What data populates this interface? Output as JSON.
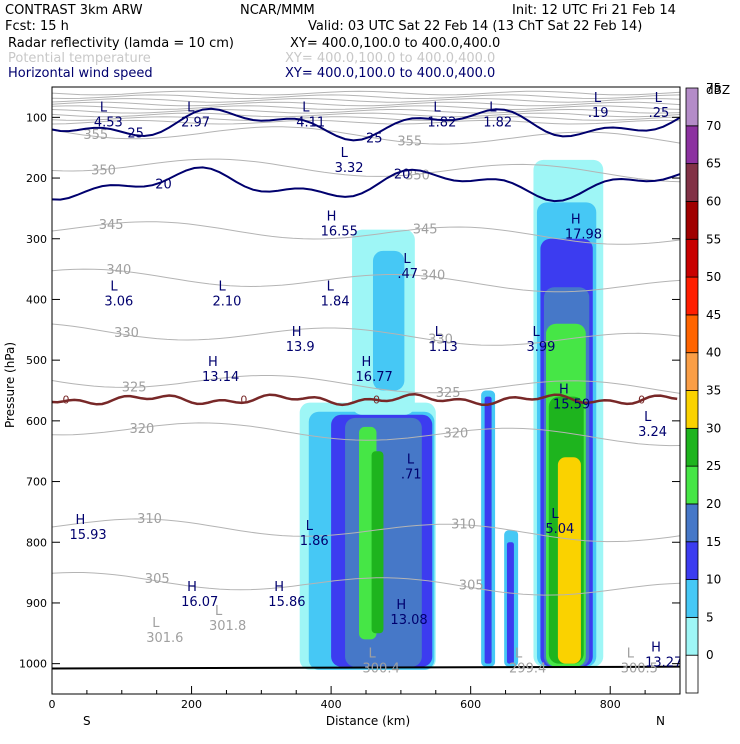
{
  "header": {
    "model": "CONTRAST   3km ARW",
    "org": "NCAR/MMM",
    "init": "Init: 12 UTC Fri 21 Feb 14",
    "fcst": "Fcst:    15 h",
    "valid": "Valid: 03 UTC Sat 22 Feb 14 (13 ChT Sat 22 Feb 14)"
  },
  "fields": [
    {
      "name": "Radar reflectivity (lamda = 10 cm)",
      "xy": "XY= 400.0,100.0 to 400.0,400.0",
      "color": "#000000"
    },
    {
      "name": "Potential temperature",
      "xy": "XY= 400.0,100.0 to 400.0,400.0",
      "color": "#c8c8c8"
    },
    {
      "name": "Horizontal wind speed",
      "xy": "XY= 400.0,100.0 to 400.0,400.0",
      "color": "#00006e"
    }
  ],
  "chart_data": {
    "type": "heatmap",
    "title": "",
    "xlabel": "Distance (km)",
    "ylabel": "Pressure (hPa)",
    "xlim": [
      0,
      900
    ],
    "ylim": [
      1050,
      50
    ],
    "x_ticks": [
      "0",
      "200",
      "400",
      "600",
      "800"
    ],
    "x_tick_values": [
      0,
      200,
      400,
      600,
      800
    ],
    "y_ticks": [
      "100",
      "200",
      "300",
      "400",
      "500",
      "600",
      "700",
      "800",
      "900",
      "1000"
    ],
    "y_tick_values": [
      100,
      200,
      300,
      400,
      500,
      600,
      700,
      800,
      900,
      1000
    ],
    "x_end_labels": {
      "left": "S",
      "right": "N"
    },
    "colorbar": {
      "unit": "dBZ",
      "levels": [
        0,
        5,
        10,
        15,
        20,
        25,
        30,
        35,
        40,
        45,
        50,
        55,
        60,
        65,
        70,
        75
      ],
      "colors": [
        "#ffffff",
        "#9ef6f6",
        "#46c8f5",
        "#3c3cf0",
        "#4678c8",
        "#46e646",
        "#1eb41e",
        "#fad200",
        "#fa9e46",
        "#ff6400",
        "#ff1e00",
        "#c80000",
        "#a00000",
        "#823246",
        "#8c32a0",
        "#b48cc8"
      ]
    },
    "reflectivity_cells": [
      {
        "x0": 355,
        "x1": 550,
        "p0": 1010,
        "p1": 570,
        "dbz": 5
      },
      {
        "x0": 368,
        "x1": 548,
        "p0": 1010,
        "p1": 585,
        "dbz": 10
      },
      {
        "x0": 400,
        "x1": 545,
        "p0": 1005,
        "p1": 590,
        "dbz": 15
      },
      {
        "x0": 420,
        "x1": 530,
        "p0": 1005,
        "p1": 595,
        "dbz": 20
      },
      {
        "x0": 440,
        "x1": 465,
        "p0": 960,
        "p1": 610,
        "dbz": 25
      },
      {
        "x0": 458,
        "x1": 475,
        "p0": 950,
        "p1": 650,
        "dbz": 30
      },
      {
        "x0": 430,
        "x1": 520,
        "p0": 590,
        "p1": 285,
        "dbz": 5
      },
      {
        "x0": 460,
        "x1": 505,
        "p0": 550,
        "p1": 320,
        "dbz": 10
      },
      {
        "x0": 615,
        "x1": 635,
        "p0": 1005,
        "p1": 550,
        "dbz": 10
      },
      {
        "x0": 620,
        "x1": 630,
        "p0": 1000,
        "p1": 560,
        "dbz": 15
      },
      {
        "x0": 648,
        "x1": 668,
        "p0": 1005,
        "p1": 780,
        "dbz": 10
      },
      {
        "x0": 652,
        "x1": 662,
        "p0": 1000,
        "p1": 800,
        "dbz": 15
      },
      {
        "x0": 690,
        "x1": 790,
        "p0": 1005,
        "p1": 170,
        "dbz": 5
      },
      {
        "x0": 695,
        "x1": 780,
        "p0": 1005,
        "p1": 240,
        "dbz": 10
      },
      {
        "x0": 700,
        "x1": 775,
        "p0": 1005,
        "p1": 300,
        "dbz": 15
      },
      {
        "x0": 705,
        "x1": 770,
        "p0": 1005,
        "p1": 380,
        "dbz": 20
      },
      {
        "x0": 708,
        "x1": 765,
        "p0": 1005,
        "p1": 440,
        "dbz": 25
      },
      {
        "x0": 712,
        "x1": 762,
        "p0": 1000,
        "p1": 560,
        "dbz": 30
      },
      {
        "x0": 725,
        "x1": 758,
        "p0": 1000,
        "p1": 660,
        "dbz": 35
      }
    ],
    "theta_contours": [
      {
        "label": "355",
        "p": 130
      },
      {
        "label": "350",
        "p": 185
      },
      {
        "label": "345",
        "p": 290
      },
      {
        "label": "340",
        "p": 370
      },
      {
        "label": "330",
        "p": 460
      },
      {
        "label": "325",
        "p": 540
      },
      {
        "label": "320",
        "p": 620
      },
      {
        "label": "310",
        "p": 780
      },
      {
        "label": "305",
        "p": 870
      }
    ],
    "wind_speed_contours": [
      {
        "label": "25",
        "p": 110
      },
      {
        "label": "20",
        "p": 210
      }
    ],
    "freezing_level": {
      "label": "0",
      "p": 565
    },
    "extrema_labels": [
      {
        "type": "L",
        "value": "4.53",
        "x": 60,
        "p": 90
      },
      {
        "type": "L",
        "value": "2.97",
        "x": 185,
        "p": 90
      },
      {
        "type": "L",
        "value": "4.11",
        "x": 350,
        "p": 90
      },
      {
        "type": "L",
        "value": "1.82",
        "x": 538,
        "p": 90
      },
      {
        "type": "L",
        "value": "1.82",
        "x": 618,
        "p": 90
      },
      {
        "type": "L",
        "value": ".19",
        "x": 768,
        "p": 75
      },
      {
        "type": "L",
        "value": ".25",
        "x": 855,
        "p": 75
      },
      {
        "type": "L",
        "value": "3.32",
        "x": 405,
        "p": 165
      },
      {
        "type": "H",
        "value": "16.55",
        "x": 385,
        "p": 270
      },
      {
        "type": "L",
        "value": ".47",
        "x": 495,
        "p": 340
      },
      {
        "type": "H",
        "value": "17.98",
        "x": 735,
        "p": 275
      },
      {
        "type": "L",
        "value": "3.06",
        "x": 75,
        "p": 385
      },
      {
        "type": "L",
        "value": "2.10",
        "x": 230,
        "p": 385
      },
      {
        "type": "L",
        "value": "1.84",
        "x": 385,
        "p": 385
      },
      {
        "type": "H",
        "value": "13.9",
        "x": 335,
        "p": 460
      },
      {
        "type": "L",
        "value": "1.13",
        "x": 540,
        "p": 460
      },
      {
        "type": "L",
        "value": "3.99",
        "x": 680,
        "p": 460
      },
      {
        "type": "H",
        "value": "13.14",
        "x": 215,
        "p": 510
      },
      {
        "type": "H",
        "value": "16.77",
        "x": 435,
        "p": 510
      },
      {
        "type": "H",
        "value": "15.59",
        "x": 718,
        "p": 555
      },
      {
        "type": "L",
        "value": "3.24",
        "x": 840,
        "p": 600
      },
      {
        "type": "L",
        "value": ".71",
        "x": 500,
        "p": 670
      },
      {
        "type": "L",
        "value": "5.04",
        "x": 707,
        "p": 760
      },
      {
        "type": "H",
        "value": "15.93",
        "x": 25,
        "p": 770
      },
      {
        "type": "L",
        "value": "1.86",
        "x": 355,
        "p": 780
      },
      {
        "type": "H",
        "value": "16.07",
        "x": 185,
        "p": 880
      },
      {
        "type": "H",
        "value": "15.86",
        "x": 310,
        "p": 880
      },
      {
        "type": "H",
        "value": "13.08",
        "x": 485,
        "p": 910
      },
      {
        "type": "H",
        "value": "13.27",
        "x": 850,
        "p": 980
      }
    ],
    "theta_extrema_labels": [
      {
        "type": "L",
        "value": "301.6",
        "x": 135,
        "p": 940
      },
      {
        "type": "L",
        "value": "301.8",
        "x": 225,
        "p": 920
      },
      {
        "type": "L",
        "value": "300.4",
        "x": 445,
        "p": 990
      },
      {
        "type": "L",
        "value": "299.4",
        "x": 655,
        "p": 990
      },
      {
        "type": "L",
        "value": "300.5",
        "x": 815,
        "p": 990
      }
    ]
  }
}
